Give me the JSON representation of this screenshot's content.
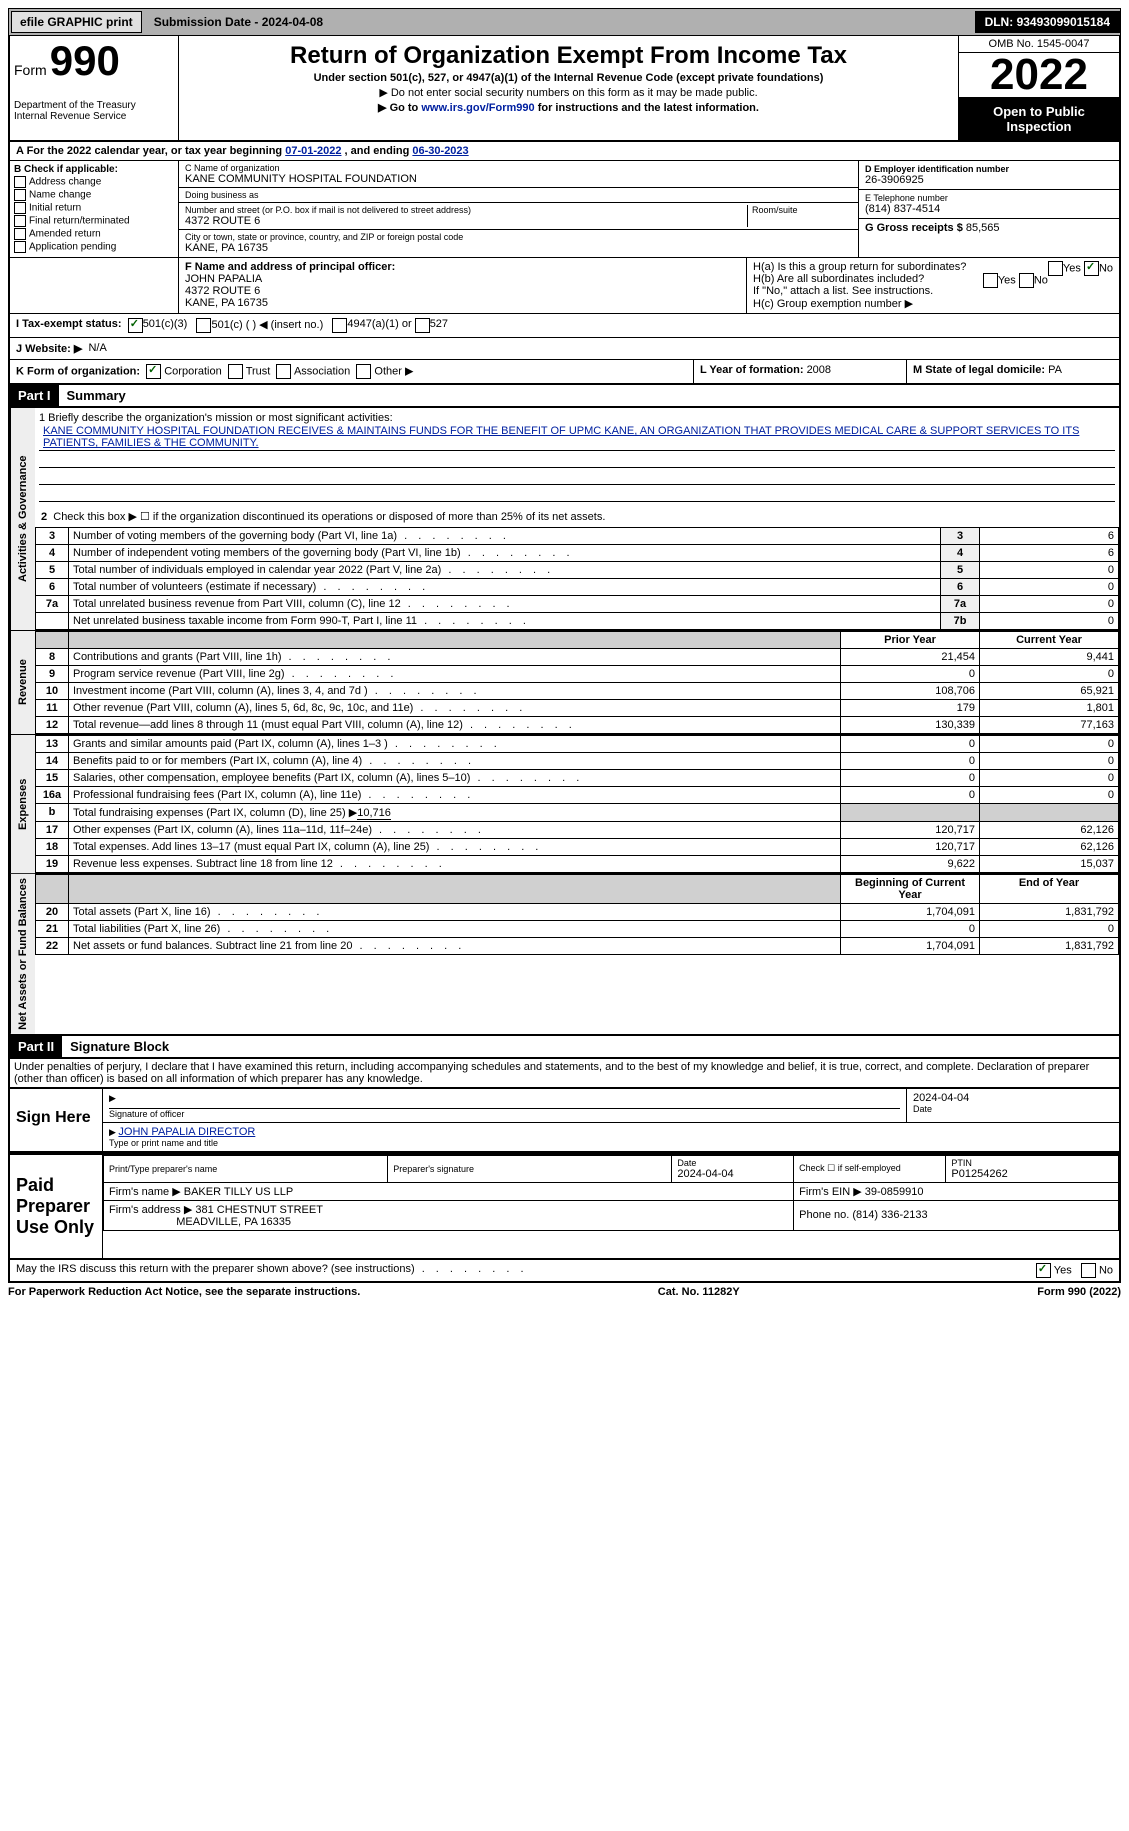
{
  "topbar": {
    "efile": "efile GRAPHIC print",
    "subdate_lbl": "Submission Date - ",
    "subdate": "2024-04-08",
    "dln_lbl": "DLN: ",
    "dln": "93493099015184"
  },
  "header": {
    "form_word": "Form",
    "form_num": "990",
    "dept": "Department of the Treasury",
    "irs": "Internal Revenue Service",
    "title": "Return of Organization Exempt From Income Tax",
    "sub": "Under section 501(c), 527, or 4947(a)(1) of the Internal Revenue Code (except private foundations)",
    "note1": "▶ Do not enter social security numbers on this form as it may be made public.",
    "note2_pre": "▶ Go to ",
    "note2_link": "www.irs.gov/Form990",
    "note2_post": " for instructions and the latest information.",
    "omb": "OMB No. 1545-0047",
    "year": "2022",
    "open": "Open to Public Inspection"
  },
  "A": {
    "text_pre": "A For the 2022 calendar year, or tax year beginning ",
    "begin": "07-01-2022",
    "mid": " , and ending ",
    "end": "06-30-2023"
  },
  "B": {
    "lbl": "B Check if applicable:",
    "items": [
      "Address change",
      "Name change",
      "Initial return",
      "Final return/terminated",
      "Amended return",
      "Application pending"
    ]
  },
  "C": {
    "name_lbl": "C Name of organization",
    "name": "KANE COMMUNITY HOSPITAL FOUNDATION",
    "dba_lbl": "Doing business as",
    "dba": "",
    "street_lbl": "Number and street (or P.O. box if mail is not delivered to street address)",
    "room_lbl": "Room/suite",
    "street": "4372 ROUTE 6",
    "city_lbl": "City or town, state or province, country, and ZIP or foreign postal code",
    "city": "KANE, PA  16735"
  },
  "D": {
    "lbl": "D Employer identification number",
    "val": "26-3906925"
  },
  "E": {
    "lbl": "E Telephone number",
    "val": "(814) 837-4514"
  },
  "G": {
    "lbl": "G Gross receipts $ ",
    "val": "85,565"
  },
  "F": {
    "lbl": "F  Name and address of principal officer:",
    "name": "JOHN PAPALIA",
    "street": "4372 ROUTE 6",
    "city": "KANE, PA  16735"
  },
  "H": {
    "a": "H(a)  Is this a group return for subordinates?",
    "b": "H(b)  Are all subordinates included?",
    "bnote": "If \"No,\" attach a list. See instructions.",
    "c": "H(c)  Group exemption number ▶",
    "yes": "Yes",
    "no": "No"
  },
  "I": {
    "lbl": "I  Tax-exempt status:",
    "o1": "501(c)(3)",
    "o2": "501(c) (  ) ◀ (insert no.)",
    "o3": "4947(a)(1) or",
    "o4": "527"
  },
  "J": {
    "lbl": "J  Website: ▶",
    "val": "N/A"
  },
  "K": {
    "lbl": "K Form of organization:",
    "o1": "Corporation",
    "o2": "Trust",
    "o3": "Association",
    "o4": "Other ▶"
  },
  "L": {
    "lbl": "L Year of formation: ",
    "val": "2008"
  },
  "M": {
    "lbl": "M State of legal domicile: ",
    "val": "PA"
  },
  "part1": {
    "hdr": "Part I",
    "title": "Summary"
  },
  "mission": {
    "lbl": "1   Briefly describe the organization's mission or most significant activities:",
    "text": "KANE COMMUNITY HOSPITAL FOUNDATION RECEIVES & MAINTAINS FUNDS FOR THE BENEFIT OF UPMC KANE, AN ORGANIZATION THAT PROVIDES MEDICAL CARE & SUPPORT SERVICES TO ITS PATIENTS, FAMILIES & THE COMMUNITY."
  },
  "line2": "Check this box ▶ ☐ if the organization discontinued its operations or disposed of more than 25% of its net assets.",
  "sidebars": {
    "act": "Activities & Governance",
    "rev": "Revenue",
    "exp": "Expenses",
    "net": "Net Assets or Fund Balances"
  },
  "govlines": [
    {
      "n": "3",
      "d": "Number of voting members of the governing body (Part VI, line 1a)",
      "b": "3",
      "v": "6"
    },
    {
      "n": "4",
      "d": "Number of independent voting members of the governing body (Part VI, line 1b)",
      "b": "4",
      "v": "6"
    },
    {
      "n": "5",
      "d": "Total number of individuals employed in calendar year 2022 (Part V, line 2a)",
      "b": "5",
      "v": "0"
    },
    {
      "n": "6",
      "d": "Total number of volunteers (estimate if necessary)",
      "b": "6",
      "v": "0"
    },
    {
      "n": "7a",
      "d": "Total unrelated business revenue from Part VIII, column (C), line 12",
      "b": "7a",
      "v": "0"
    },
    {
      "n": "",
      "d": "Net unrelated business taxable income from Form 990-T, Part I, line 11",
      "b": "7b",
      "v": "0"
    }
  ],
  "colhdrs": {
    "prior": "Prior Year",
    "current": "Current Year",
    "begin": "Beginning of Current Year",
    "end": "End of Year"
  },
  "revlines": [
    {
      "n": "8",
      "d": "Contributions and grants (Part VIII, line 1h)",
      "p": "21,454",
      "c": "9,441"
    },
    {
      "n": "9",
      "d": "Program service revenue (Part VIII, line 2g)",
      "p": "0",
      "c": "0"
    },
    {
      "n": "10",
      "d": "Investment income (Part VIII, column (A), lines 3, 4, and 7d )",
      "p": "108,706",
      "c": "65,921"
    },
    {
      "n": "11",
      "d": "Other revenue (Part VIII, column (A), lines 5, 6d, 8c, 9c, 10c, and 11e)",
      "p": "179",
      "c": "1,801"
    },
    {
      "n": "12",
      "d": "Total revenue—add lines 8 through 11 (must equal Part VIII, column (A), line 12)",
      "p": "130,339",
      "c": "77,163"
    }
  ],
  "explines": [
    {
      "n": "13",
      "d": "Grants and similar amounts paid (Part IX, column (A), lines 1–3 )",
      "p": "0",
      "c": "0"
    },
    {
      "n": "14",
      "d": "Benefits paid to or for members (Part IX, column (A), line 4)",
      "p": "0",
      "c": "0"
    },
    {
      "n": "15",
      "d": "Salaries, other compensation, employee benefits (Part IX, column (A), lines 5–10)",
      "p": "0",
      "c": "0"
    },
    {
      "n": "16a",
      "d": "Professional fundraising fees (Part IX, column (A), line 11e)",
      "p": "0",
      "c": "0"
    }
  ],
  "line16b": {
    "n": "b",
    "d": "Total fundraising expenses (Part IX, column (D), line 25) ▶",
    "v": "10,716"
  },
  "explines2": [
    {
      "n": "17",
      "d": "Other expenses (Part IX, column (A), lines 11a–11d, 11f–24e)",
      "p": "120,717",
      "c": "62,126"
    },
    {
      "n": "18",
      "d": "Total expenses. Add lines 13–17 (must equal Part IX, column (A), line 25)",
      "p": "120,717",
      "c": "62,126"
    },
    {
      "n": "19",
      "d": "Revenue less expenses. Subtract line 18 from line 12",
      "p": "9,622",
      "c": "15,037"
    }
  ],
  "netlines": [
    {
      "n": "20",
      "d": "Total assets (Part X, line 16)",
      "p": "1,704,091",
      "c": "1,831,792"
    },
    {
      "n": "21",
      "d": "Total liabilities (Part X, line 26)",
      "p": "0",
      "c": "0"
    },
    {
      "n": "22",
      "d": "Net assets or fund balances. Subtract line 21 from line 20",
      "p": "1,704,091",
      "c": "1,831,792"
    }
  ],
  "part2": {
    "hdr": "Part II",
    "title": "Signature Block"
  },
  "sigdecl": "Under penalties of perjury, I declare that I have examined this return, including accompanying schedules and statements, and to the best of my knowledge and belief, it is true, correct, and complete. Declaration of preparer (other than officer) is based on all information of which preparer has any knowledge.",
  "sign": {
    "here": "Sign Here",
    "sigoff": "Signature of officer",
    "date": "2024-04-04",
    "datel": "Date",
    "name": "JOHN PAPALIA  DIRECTOR",
    "namel": "Type or print name and title"
  },
  "paid": {
    "here": "Paid Preparer Use Only",
    "prepname_lbl": "Print/Type preparer's name",
    "prepsig_lbl": "Preparer's signature",
    "date_lbl": "Date",
    "date": "2024-04-04",
    "check_lbl": "Check ☐ if self-employed",
    "ptin_lbl": "PTIN",
    "ptin": "P01254262",
    "firm_lbl": "Firm's name    ▶",
    "firm": "BAKER TILLY US LLP",
    "ein_lbl": "Firm's EIN ▶",
    "ein": "39-0859910",
    "addr_lbl": "Firm's address ▶",
    "addr1": "381 CHESTNUT STREET",
    "addr2": "MEADVILLE, PA  16335",
    "phone_lbl": "Phone no. ",
    "phone": "(814) 336-2133"
  },
  "discuss": {
    "q": "May the IRS discuss this return with the preparer shown above? (see instructions)",
    "yes": "Yes",
    "no": "No"
  },
  "footer": {
    "left": "For Paperwork Reduction Act Notice, see the separate instructions.",
    "mid": "Cat. No. 11282Y",
    "right": "Form 990 (2022)"
  }
}
